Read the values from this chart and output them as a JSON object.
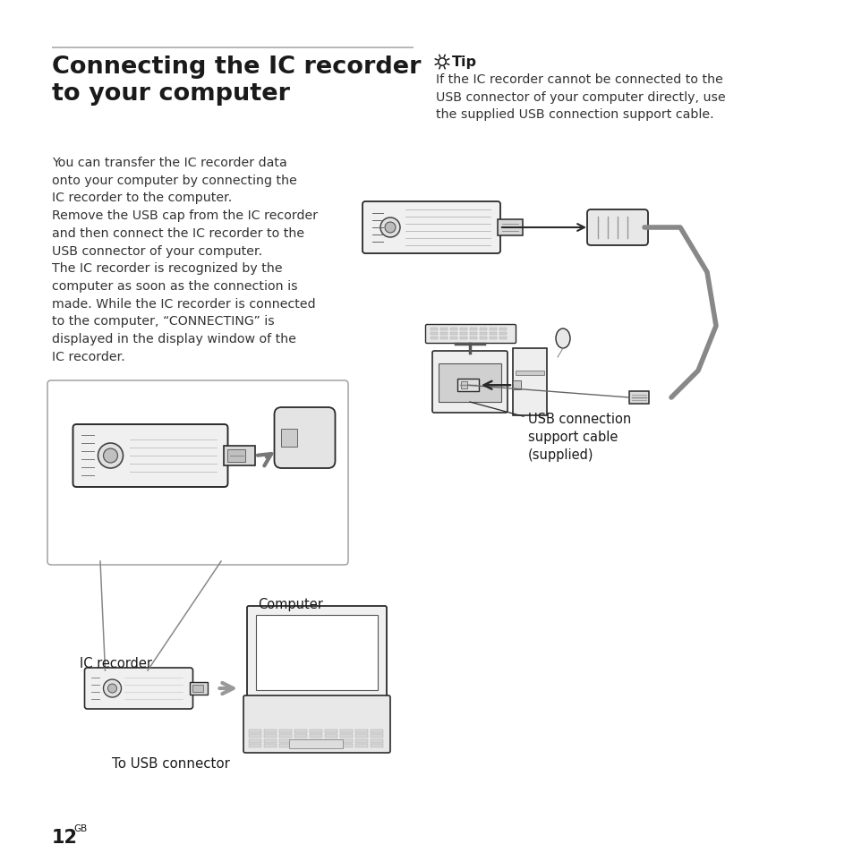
{
  "bg_color": "#ffffff",
  "title": "Connecting the IC recorder\nto your computer",
  "body_text_lines": [
    "You can transfer the IC recorder data",
    "onto your computer by connecting the",
    "IC recorder to the computer.",
    "Remove the USB cap from the IC recorder",
    "and then connect the IC recorder to the",
    "USB connector of your computer.",
    "The IC recorder is recognized by the",
    "computer as soon as the connection is",
    "made. While the IC recorder is connected",
    "to the computer, “CONNECTING” is",
    "displayed in the display window of the",
    "IC recorder."
  ],
  "tip_title": "Tip",
  "tip_body_lines": [
    "If the IC recorder cannot be connected to the",
    "USB connector of your computer directly, use",
    "the supplied USB connection support cable."
  ],
  "usb_label_line1": "USB connection",
  "usb_label_line2": "support cable",
  "usb_label_line3": "(supplied)",
  "computer_label": "Computer",
  "ic_recorder_label": "IC recorder",
  "usb_connector_label": "To USB connector",
  "page_number": "12",
  "page_suffix": "GB",
  "text_color": "#1a1a1a",
  "body_color": "#333333",
  "rule_color": "#aaaaaa",
  "draw_color": "#2a2a2a",
  "light_gray": "#d0d0d0",
  "mid_gray": "#888888",
  "arrow_gray": "#888888"
}
